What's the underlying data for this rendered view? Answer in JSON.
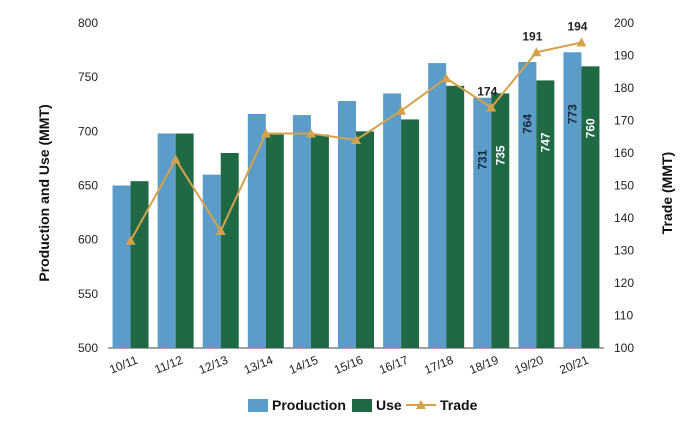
{
  "chart_data": {
    "type": "bar",
    "categories": [
      "10/11",
      "11/12",
      "12/13",
      "13/14",
      "14/15",
      "15/16",
      "16/17",
      "17/18",
      "18/19",
      "19/20",
      "20/21"
    ],
    "series": [
      {
        "name": "Production",
        "kind": "bar",
        "axis": "left",
        "color": "#5b9cc8",
        "values": [
          650,
          698,
          660,
          716,
          715,
          728,
          735,
          763,
          731,
          764,
          773
        ]
      },
      {
        "name": "Use",
        "kind": "bar",
        "axis": "left",
        "color": "#1f6a45",
        "values": [
          654,
          698,
          680,
          697,
          697,
          700,
          711,
          742,
          735,
          747,
          760
        ]
      },
      {
        "name": "Trade",
        "kind": "line",
        "axis": "right",
        "color": "#d5a24c",
        "values": [
          133,
          158,
          136,
          166,
          166,
          164,
          173,
          183,
          174,
          191,
          194
        ]
      }
    ],
    "bar_labels": [
      {
        "series": "Production",
        "index": 8,
        "text": "731"
      },
      {
        "series": "Use",
        "index": 8,
        "text": "735"
      },
      {
        "series": "Production",
        "index": 9,
        "text": "764"
      },
      {
        "series": "Use",
        "index": 9,
        "text": "747"
      },
      {
        "series": "Production",
        "index": 10,
        "text": "773"
      },
      {
        "series": "Use",
        "index": 10,
        "text": "760"
      }
    ],
    "line_labels": [
      {
        "index": 8,
        "text": "174"
      },
      {
        "index": 9,
        "text": "191"
      },
      {
        "index": 10,
        "text": "194"
      }
    ],
    "ylabel": "Production and Use (MMT)",
    "y2label": "Trade (MMT)",
    "ylim": [
      500,
      800
    ],
    "y2lim": [
      100,
      200
    ],
    "yticks": [
      500,
      550,
      600,
      650,
      700,
      750,
      800
    ],
    "y2ticks": [
      100,
      110,
      120,
      130,
      140,
      150,
      160,
      170,
      180,
      190,
      200
    ],
    "grid": false,
    "legend": {
      "position": "bottom",
      "entries": [
        "Production",
        "Use",
        "Trade"
      ]
    }
  }
}
